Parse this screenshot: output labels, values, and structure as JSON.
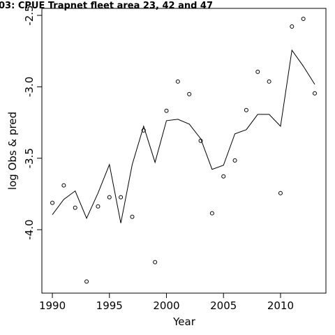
{
  "chart_data": {
    "type": "line",
    "title": "03: CPUE Trapnet fleet area 23, 42 and 47",
    "x_label": "Year",
    "y_label": "log Obs & pred",
    "x": [
      1990,
      1991,
      1992,
      1993,
      1994,
      1995,
      1996,
      1997,
      1998,
      1999,
      2000,
      2001,
      2002,
      2003,
      2004,
      2005,
      2006,
      2007,
      2008,
      2009,
      2010,
      2011,
      2012,
      2013
    ],
    "series": [
      {
        "marker": "circle",
        "color": "#000000",
        "values": [
          -3.812,
          -3.69,
          -3.846,
          -4.363,
          -3.837,
          -3.773,
          -3.773,
          -3.91,
          -3.305,
          -4.227,
          -3.168,
          -2.963,
          -3.051,
          -3.378,
          -3.885,
          -3.627,
          -3.515,
          -3.163,
          -2.895,
          -2.963,
          -3.744,
          -2.578,
          -2.524,
          -3.046
        ]
      },
      {
        "marker": "none",
        "color": "#000000",
        "values": [
          -3.895,
          -3.788,
          -3.729,
          -3.92,
          -3.744,
          -3.544,
          -3.954,
          -3.544,
          -3.276,
          -3.529,
          -3.237,
          -3.227,
          -3.261,
          -3.363,
          -3.578,
          -3.549,
          -3.329,
          -3.3,
          -3.193,
          -3.193,
          -3.276,
          -2.744,
          -2.856,
          -2.983
        ]
      }
    ],
    "xlim": [
      1989.08,
      2013.98
    ],
    "xticks": [
      1990,
      1995,
      2000,
      2005,
      2010
    ],
    "ylim": [
      -4.444,
      -2.451
    ],
    "yticks": [
      -2.5,
      {
        "value": -3,
        "label": "-3.0"
      },
      -3.5,
      {
        "value": -4,
        "label": "-4.0"
      }
    ]
  }
}
